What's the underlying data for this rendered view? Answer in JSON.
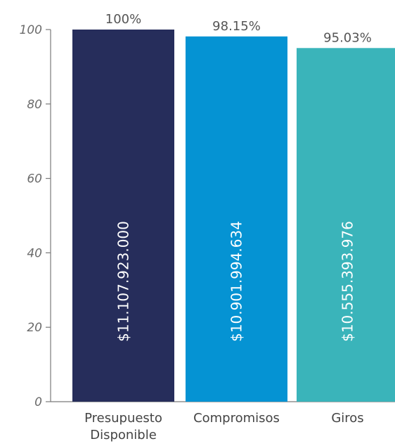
{
  "chart_data": {
    "type": "bar",
    "categories": [
      [
        "Presupuesto",
        "Disponible"
      ],
      [
        "Compromisos"
      ],
      [
        "Giros"
      ]
    ],
    "values": [
      100,
      98.15,
      95.03
    ],
    "bar_value_labels": [
      "$11.107.923.000",
      "$10.901.994.634",
      "$10.555.393.976"
    ],
    "percent_labels": [
      "100%",
      "98.15%",
      "95.03%"
    ],
    "colors": [
      "#262d5b",
      "#0593d3",
      "#3ab4ba"
    ],
    "ylim": [
      0,
      100
    ],
    "yticks": [
      0,
      20,
      40,
      60,
      80,
      100
    ],
    "ytick_labels": [
      "0",
      "20",
      "40",
      "60",
      "80",
      "100"
    ],
    "grid": false,
    "title": "",
    "xlabel": "",
    "ylabel": ""
  }
}
